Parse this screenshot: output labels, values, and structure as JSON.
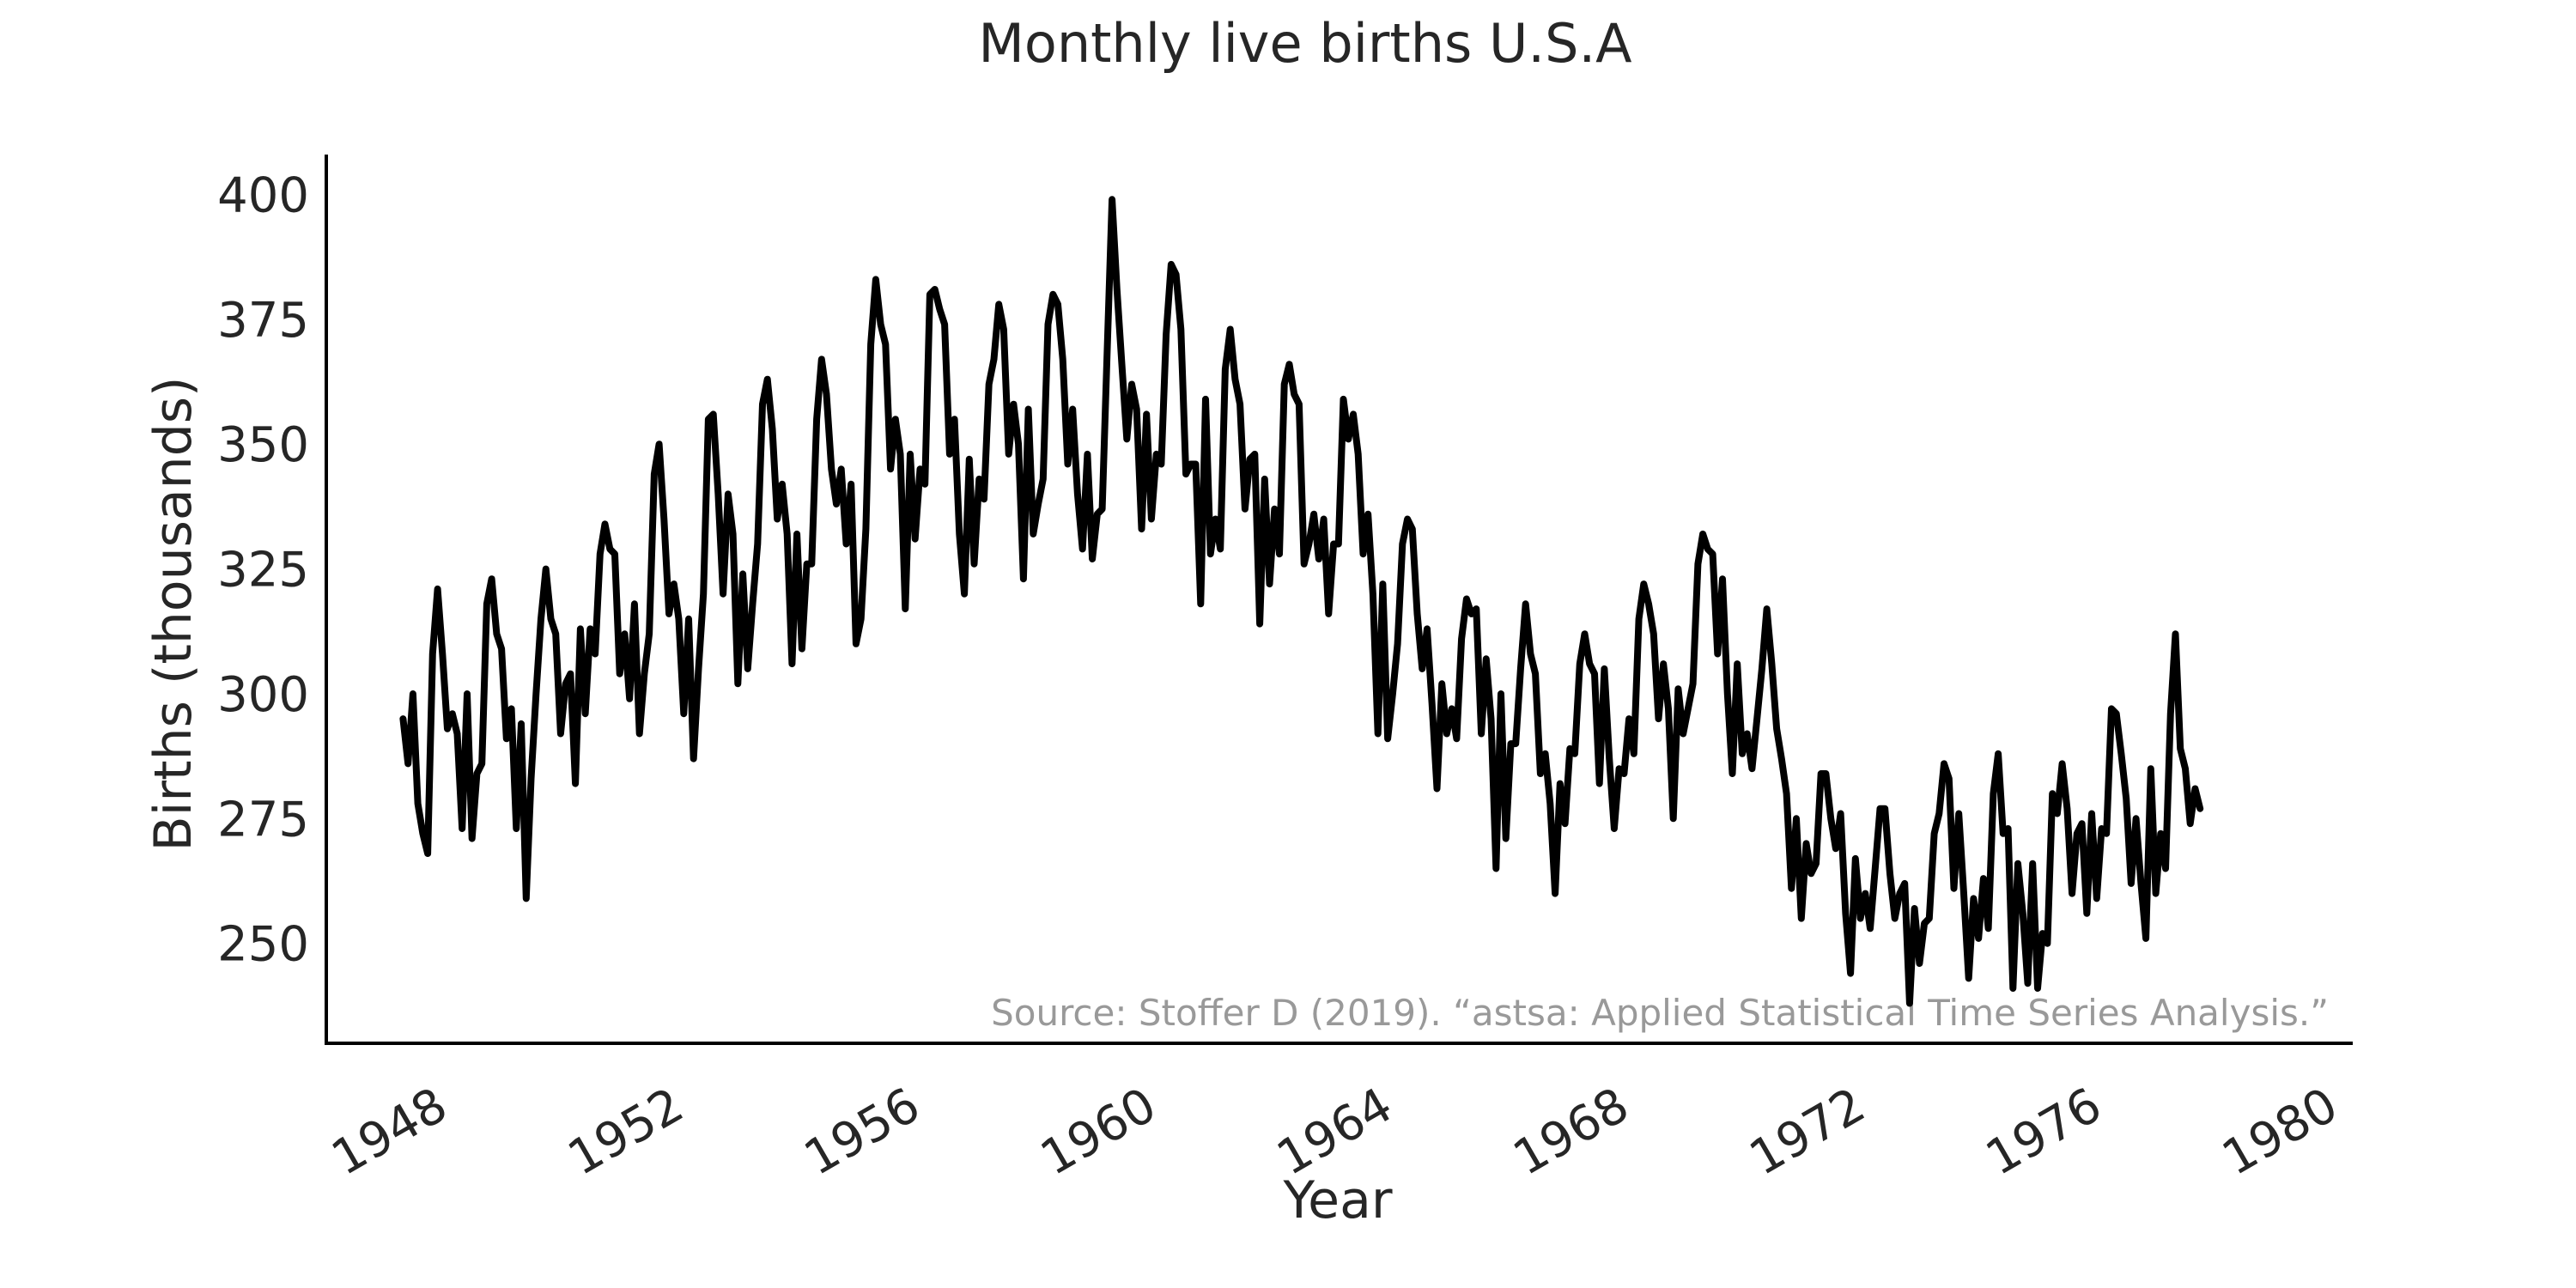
{
  "chart_data": {
    "type": "line",
    "title": "Monthly live births U.S.A",
    "xlabel": "Year",
    "ylabel": "Births (thousands)",
    "annotation": "Source: Stoffer D (2019). “astsa: Applied Statistical Time Series Analysis.”",
    "xlim": [
      1946.7,
      1981.0
    ],
    "ylim": [
      230,
      408
    ],
    "x_ticks": [
      1948,
      1952,
      1956,
      1960,
      1964,
      1968,
      1972,
      1976,
      1980
    ],
    "x_tick_labels": [
      "1948",
      "1952",
      "1956",
      "1960",
      "1964",
      "1968",
      "1972",
      "1976",
      "1980"
    ],
    "y_ticks": [
      250,
      275,
      300,
      325,
      350,
      375,
      400
    ],
    "y_tick_labels": [
      "250",
      "275",
      "300",
      "325",
      "350",
      "375",
      "400"
    ],
    "grid": false,
    "legend": "none",
    "line_color": "#000000",
    "series": [
      {
        "x_start": 1948.0,
        "x_step": 0.08333,
        "values": [
          295,
          286,
          300,
          278,
          272,
          268,
          308,
          321,
          308,
          293,
          296,
          292,
          273,
          300,
          271,
          284,
          286,
          318,
          323,
          312,
          309,
          291,
          297,
          273,
          294,
          259,
          283,
          300,
          315,
          325,
          315,
          312,
          292,
          302,
          304,
          282,
          313,
          296,
          313,
          308,
          328,
          334,
          329,
          328,
          304,
          312,
          299,
          318,
          292,
          304,
          312,
          344,
          350,
          335,
          316,
          322,
          315,
          296,
          315,
          287,
          305,
          320,
          355,
          356,
          340,
          320,
          340,
          332,
          302,
          324,
          305,
          318,
          330,
          358,
          363,
          353,
          335,
          342,
          332,
          306,
          332,
          309,
          326,
          326,
          355,
          367,
          360,
          345,
          338,
          345,
          330,
          342,
          310,
          315,
          333,
          370,
          383,
          374,
          370,
          345,
          355,
          348,
          317,
          348,
          331,
          345,
          342,
          380,
          381,
          377,
          374,
          348,
          355,
          332,
          320,
          347,
          326,
          343,
          339,
          362,
          367,
          378,
          373,
          348,
          358,
          350,
          323,
          357,
          332,
          338,
          343,
          374,
          380,
          378,
          367,
          346,
          357,
          340,
          329,
          348,
          327,
          336,
          337,
          368,
          399,
          381,
          366,
          351,
          362,
          357,
          333,
          356,
          335,
          348,
          346,
          372,
          386,
          384,
          373,
          344,
          346,
          346,
          318,
          359,
          328,
          335,
          329,
          365,
          373,
          363,
          358,
          337,
          347,
          348,
          314,
          343,
          322,
          337,
          328,
          362,
          366,
          360,
          358,
          326,
          330,
          336,
          327,
          335,
          316,
          330,
          330,
          359,
          351,
          356,
          348,
          328,
          336,
          320,
          292,
          322,
          291,
          300,
          310,
          330,
          335,
          333,
          316,
          305,
          313,
          298,
          281,
          302,
          292,
          297,
          291,
          311,
          319,
          316,
          317,
          292,
          307,
          295,
          265,
          300,
          271,
          290,
          290,
          305,
          318,
          308,
          304,
          284,
          288,
          278,
          260,
          282,
          274,
          289,
          288,
          306,
          312,
          306,
          304,
          282,
          305,
          287,
          273,
          285,
          284,
          295,
          288,
          315,
          322,
          318,
          312,
          295,
          306,
          297,
          275,
          301,
          292,
          297,
          302,
          326,
          332,
          329,
          328,
          308,
          323,
          300,
          284,
          306,
          288,
          292,
          285,
          295,
          305,
          317,
          306,
          293,
          287,
          280,
          261,
          275,
          255,
          270,
          264,
          266,
          284,
          284,
          275,
          269,
          276,
          256,
          244,
          267,
          255,
          260,
          253,
          265,
          277,
          277,
          264,
          255,
          260,
          262,
          238,
          257,
          246,
          254,
          255,
          272,
          276,
          286,
          283,
          261,
          276,
          260,
          243,
          259,
          251,
          263,
          253,
          280,
          288,
          272,
          273,
          241,
          266,
          256,
          242,
          266,
          241,
          252,
          250,
          280,
          276,
          286,
          277,
          260,
          272,
          274,
          256,
          276,
          259,
          273,
          272,
          297,
          296,
          288,
          279,
          262,
          275,
          262,
          251,
          285,
          260,
          272,
          265,
          296,
          312,
          289,
          285,
          274,
          281,
          277
        ]
      }
    ]
  }
}
